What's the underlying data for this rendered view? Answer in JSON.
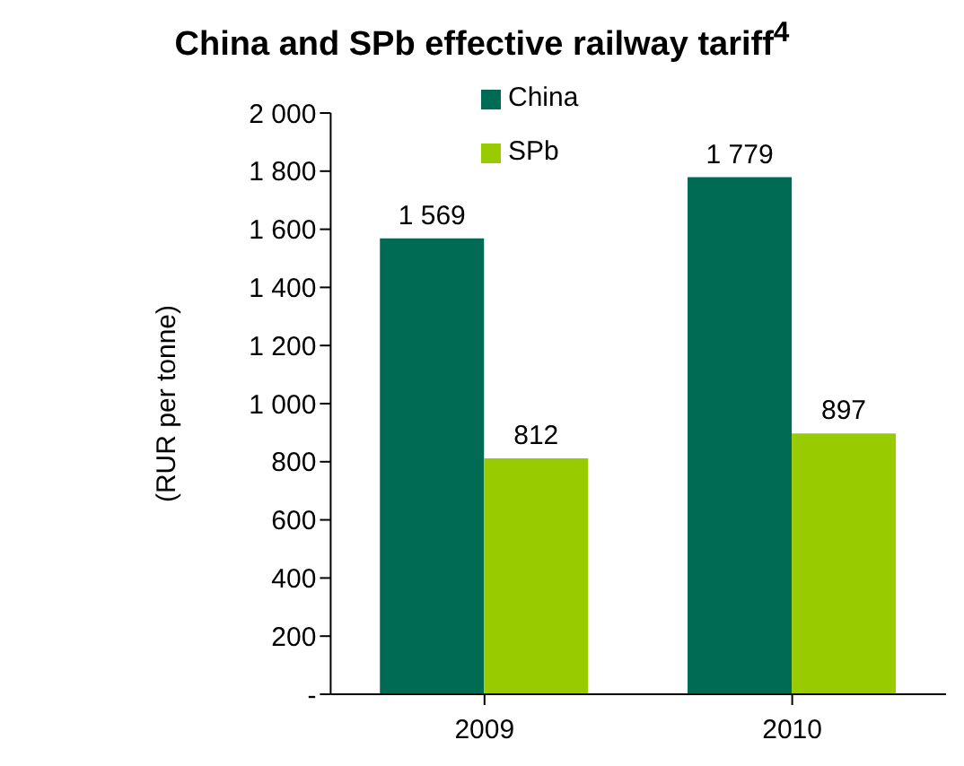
{
  "chart_data": {
    "type": "bar",
    "title": "China and SPb effective railway tariff$^{4}$",
    "ylabel": "(RUR per tonne)",
    "categories": [
      "2009",
      "2010"
    ],
    "series": [
      {
        "name": "China",
        "color": "#006b54",
        "values": [
          1569,
          1779
        ],
        "value_labels": [
          "1 569",
          "1 779"
        ]
      },
      {
        "name": "SPb",
        "color": "#99cc00",
        "values": [
          812,
          897
        ],
        "value_labels": [
          "812",
          "897"
        ]
      }
    ],
    "ylim": [
      0,
      2000
    ],
    "yticks": [
      {
        "value": 0,
        "label": "-"
      },
      {
        "value": 200,
        "label": "200"
      },
      {
        "value": 400,
        "label": "400"
      },
      {
        "value": 600,
        "label": "600"
      },
      {
        "value": 800,
        "label": "800"
      },
      {
        "value": 1000,
        "label": "1 000"
      },
      {
        "value": 1200,
        "label": "1 200"
      },
      {
        "value": 1400,
        "label": "1 400"
      },
      {
        "value": 1600,
        "label": "1 600"
      },
      {
        "value": 1800,
        "label": "1 800"
      },
      {
        "value": 2000,
        "label": "2 000"
      }
    ],
    "grid": false,
    "legend": "top"
  }
}
